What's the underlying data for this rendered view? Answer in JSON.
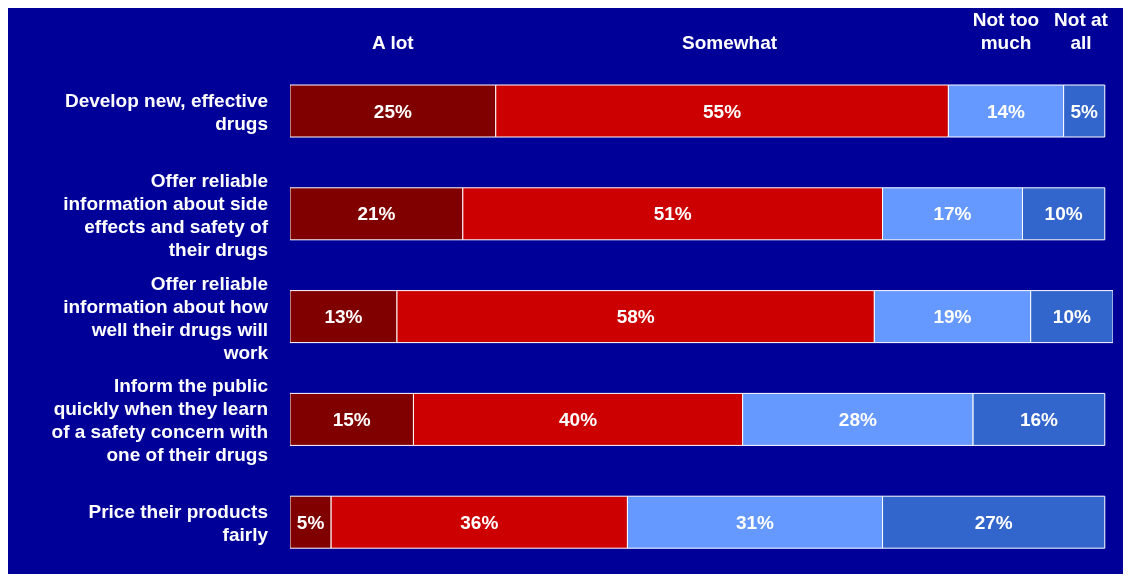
{
  "chart_data": {
    "type": "bar",
    "orientation": "horizontal",
    "stacked": true,
    "legend": "top",
    "tick_labels": "y",
    "xlim": [
      0,
      100
    ],
    "categories": [
      "Develop new, effective drugs",
      "Offer reliable information about side effects and safety of their drugs",
      "Offer reliable information about how well their drugs will work",
      "Inform the public quickly when they learn of a safety concern with one of their drugs",
      "Price their products fairly"
    ],
    "series": [
      {
        "name": "A lot",
        "color": "#800000",
        "values": [
          25,
          21,
          13,
          15,
          5
        ],
        "value_labels": [
          "25%",
          "21%",
          "13%",
          "15%",
          "5%"
        ]
      },
      {
        "name": "Somewhat",
        "color": "#cc0000",
        "values": [
          55,
          51,
          58,
          40,
          36
        ],
        "value_labels": [
          "55%",
          "51%",
          "58%",
          "40%",
          "36%"
        ]
      },
      {
        "name": "Not too much",
        "color": "#6699ff",
        "values": [
          14,
          17,
          19,
          28,
          31
        ],
        "value_labels": [
          "14%",
          "17%",
          "19%",
          "28%",
          "31%"
        ]
      },
      {
        "name": "Not at all",
        "color": "#3366cc",
        "values": [
          5,
          10,
          10,
          16,
          27
        ],
        "value_labels": [
          "5%",
          "10%",
          "10%",
          "16%",
          "27%"
        ]
      }
    ]
  }
}
